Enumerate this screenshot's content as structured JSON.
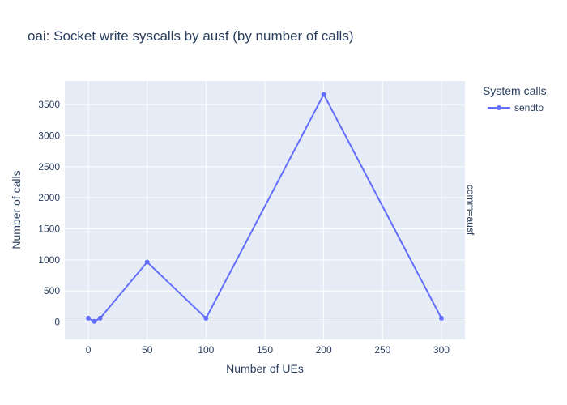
{
  "chart_data": {
    "type": "line",
    "title": "oai: Socket write syscalls by ausf (by number of calls)",
    "xlabel": "Number of UEs",
    "ylabel": "Number of calls",
    "xlim": [
      -20,
      320
    ],
    "ylim": [
      -280,
      3880
    ],
    "x_ticks": [
      0,
      50,
      100,
      150,
      200,
      250,
      300
    ],
    "y_ticks": [
      0,
      500,
      1000,
      1500,
      2000,
      2500,
      3000,
      3500
    ],
    "legend_title": "System calls",
    "facet_label": "comm=ausf",
    "grid": true,
    "legend_position": "top-right",
    "colors": {
      "plot_bg": "#e5ecf6",
      "grid": "#ffffff",
      "series": "#636efa"
    },
    "series": [
      {
        "name": "sendto",
        "x": [
          0,
          5,
          10,
          50,
          100,
          200,
          300
        ],
        "y": [
          60,
          10,
          60,
          965,
          60,
          3665,
          60
        ]
      }
    ]
  }
}
